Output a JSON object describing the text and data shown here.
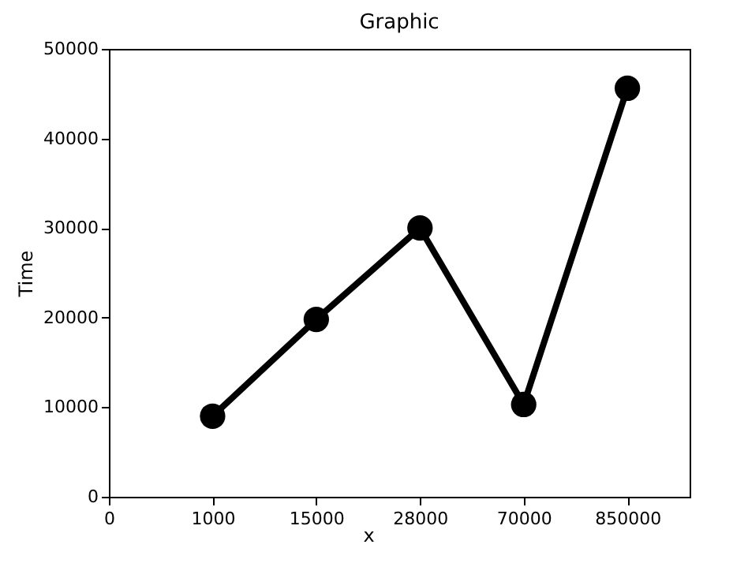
{
  "chart_data": {
    "type": "line",
    "title": "Graphic",
    "xlabel": "x",
    "ylabel": "Time",
    "categories": [
      "0",
      "1000",
      "15000",
      "28000",
      "70000",
      "850000"
    ],
    "ylim": [
      0,
      50000
    ],
    "yticks": [
      0,
      10000,
      20000,
      30000,
      40000,
      50000
    ],
    "series": [
      {
        "color": "#000000",
        "values": [
          null,
          9000,
          19800,
          30000,
          10300,
          45600
        ]
      }
    ],
    "marker": "circle",
    "line_style": "solid",
    "grid": false
  }
}
